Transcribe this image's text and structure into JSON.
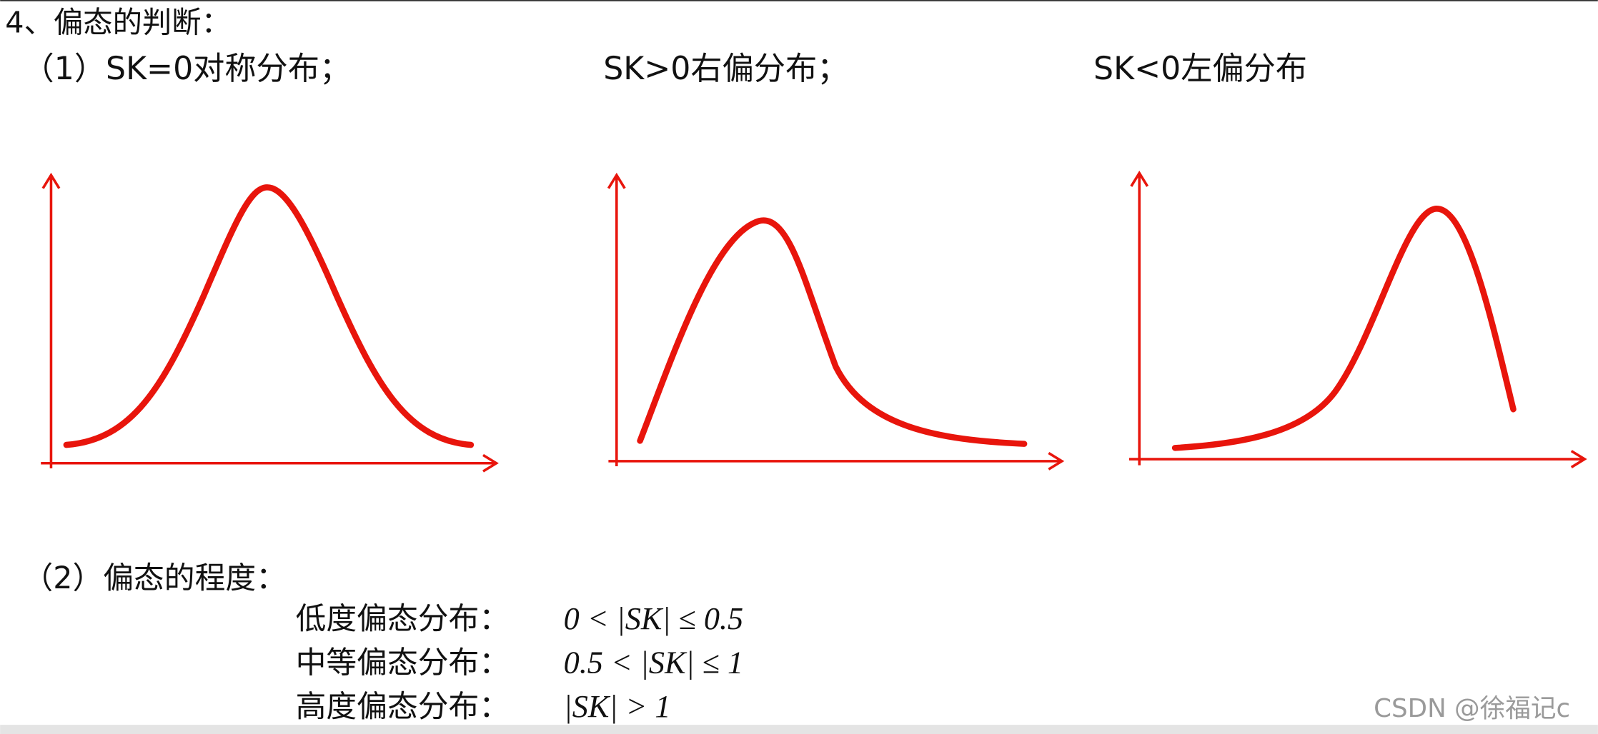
{
  "heading": "4、偏态的判断：",
  "part1": {
    "captions": [
      "（1）SK=0对称分布；",
      "SK>0右偏分布；",
      "SK<0左偏分布"
    ]
  },
  "part2": {
    "title": "（2）偏态的程度：",
    "rows": [
      {
        "name": "低度偏态分布：",
        "rule": "0 < |SK| ≤ 0.5"
      },
      {
        "name": "中等偏态分布：",
        "rule": "0.5 < |SK| ≤ 1"
      },
      {
        "name": "高度偏态分布：",
        "rule": "|SK| > 1"
      }
    ]
  },
  "watermark": "CSDN @徐福记c"
}
